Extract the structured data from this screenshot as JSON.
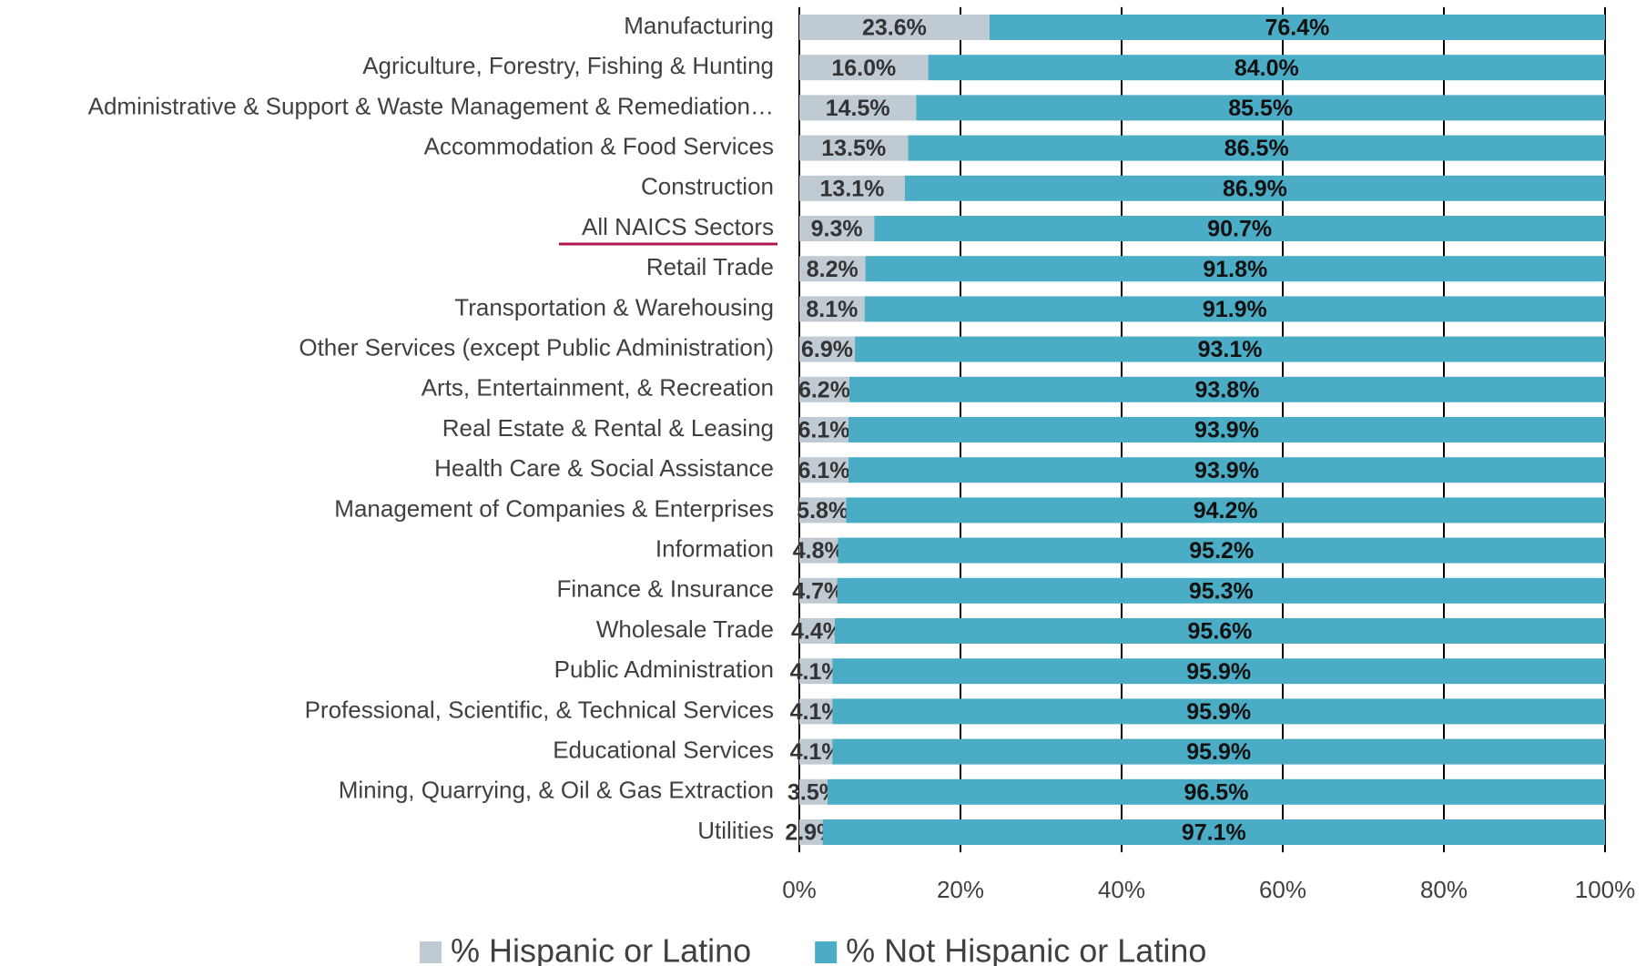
{
  "chart_data": {
    "type": "stacked_barh",
    "categories": [
      "Manufacturing",
      "Agriculture, Forestry, Fishing & Hunting",
      "Administrative & Support & Waste Management & Remediation…",
      "Accommodation & Food Services",
      "Construction",
      "All NAICS Sectors",
      "Retail Trade",
      "Transportation & Warehousing",
      "Other Services (except Public Administration)",
      "Arts, Entertainment, & Recreation",
      "Real Estate & Rental & Leasing",
      "Health Care & Social Assistance",
      "Management of Companies & Enterprises",
      "Information",
      "Finance & Insurance",
      "Wholesale Trade",
      "Public Administration",
      "Professional, Scientific, & Technical Services",
      "Educational Services",
      "Mining, Quarrying, & Oil & Gas Extraction",
      "Utilities"
    ],
    "series": [
      {
        "name": "% Hispanic or Latino",
        "color": "#bfcad3",
        "values": [
          23.6,
          16.0,
          14.5,
          13.5,
          13.1,
          9.3,
          8.2,
          8.1,
          6.9,
          6.2,
          6.1,
          6.1,
          5.8,
          4.8,
          4.7,
          4.4,
          4.1,
          4.1,
          4.1,
          3.5,
          2.9
        ],
        "value_labels": [
          "23.6%",
          "16.0%",
          "14.5%",
          "13.5%",
          "13.1%",
          "9.3%",
          "8.2%",
          "8.1%",
          "6.9%",
          "6.2%",
          "6.1%",
          "6.1%",
          "5.8%",
          "4.8%",
          "4.7%",
          "4.4%",
          "4.1%",
          "4.1%",
          "4.1%",
          "3.5%",
          "2.9%"
        ]
      },
      {
        "name": "% Not Hispanic or Latino",
        "color": "#4bacc6",
        "values": [
          76.4,
          84.0,
          85.5,
          86.5,
          86.9,
          90.7,
          91.8,
          91.9,
          93.1,
          93.8,
          93.9,
          93.9,
          94.2,
          95.2,
          95.3,
          95.6,
          95.9,
          95.9,
          95.9,
          96.5,
          97.1
        ],
        "value_labels": [
          "76.4%",
          "84.0%",
          "85.5%",
          "86.5%",
          "86.9%",
          "90.7%",
          "91.8%",
          "91.9%",
          "93.1%",
          "93.8%",
          "93.9%",
          "93.9%",
          "94.2%",
          "95.2%",
          "95.3%",
          "95.6%",
          "95.9%",
          "95.9%",
          "95.9%",
          "96.5%",
          "97.1%"
        ]
      }
    ],
    "xlim": [
      0,
      100
    ],
    "xticks": [
      {
        "value": 0,
        "label": "0%"
      },
      {
        "value": 20,
        "label": "20%"
      },
      {
        "value": 40,
        "label": "40%"
      },
      {
        "value": 60,
        "label": "60%"
      },
      {
        "value": 80,
        "label": "80%"
      },
      {
        "value": 100,
        "label": "100%"
      }
    ],
    "grid": true,
    "legend": "bottom"
  }
}
